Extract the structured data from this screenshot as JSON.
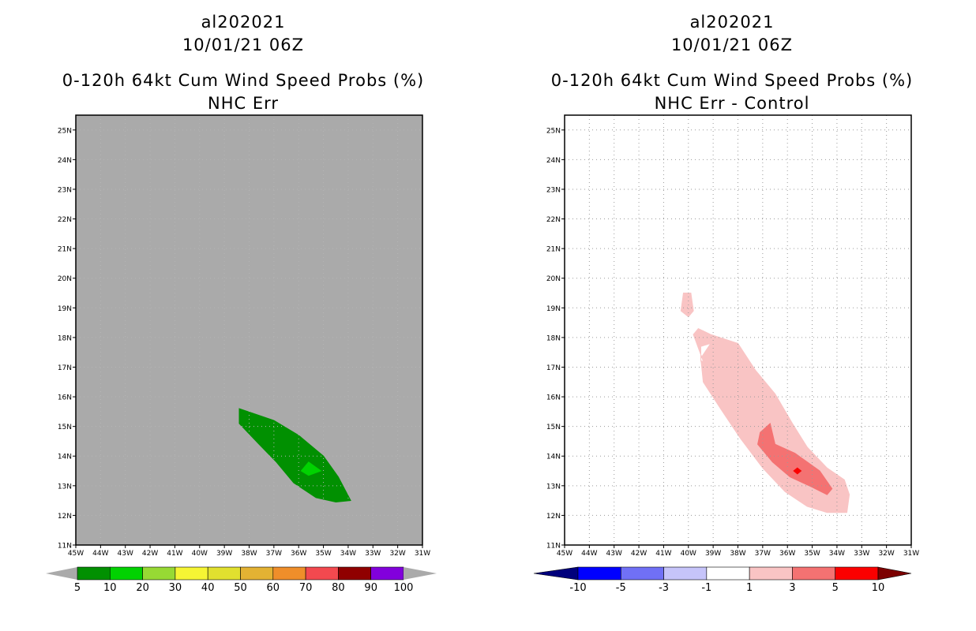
{
  "chart_data": [
    {
      "type": "contour-map",
      "storm_id": "al202021",
      "datetime": "10/01/21 06Z",
      "title": "0-120h 64kt Cum Wind Speed Probs (%)",
      "subtitle": "NHC Err",
      "lat_range": [
        11,
        25.5
      ],
      "lon_range": [
        -45,
        -31
      ],
      "lat_ticks": [
        "11N",
        "12N",
        "13N",
        "14N",
        "15N",
        "16N",
        "17N",
        "18N",
        "19N",
        "20N",
        "21N",
        "22N",
        "23N",
        "24N",
        "25N"
      ],
      "lon_ticks": [
        "45W",
        "44W",
        "43W",
        "42W",
        "41W",
        "40W",
        "39W",
        "38W",
        "37W",
        "36W",
        "35W",
        "34W",
        "33W",
        "32W",
        "31W"
      ],
      "background": "#aaaaaa",
      "regions": [
        {
          "level": "5-10",
          "color": "#019001",
          "lonlat": [
            [
              -38.4,
              15.6
            ],
            [
              -37.0,
              15.2
            ],
            [
              -36.0,
              14.7
            ],
            [
              -35.0,
              14.0
            ],
            [
              -34.4,
              13.3
            ],
            [
              -33.9,
              12.5
            ],
            [
              -34.5,
              12.45
            ],
            [
              -35.3,
              12.6
            ],
            [
              -36.2,
              13.1
            ],
            [
              -36.9,
              13.8
            ],
            [
              -37.6,
              14.4
            ],
            [
              -38.4,
              15.1
            ]
          ]
        },
        {
          "level": "10-20",
          "color": "#01d201",
          "lonlat": [
            [
              -35.6,
              13.8
            ],
            [
              -35.1,
              13.5
            ],
            [
              -35.6,
              13.35
            ],
            [
              -35.9,
              13.5
            ]
          ]
        }
      ],
      "colorbar": {
        "labels": [
          "5",
          "10",
          "20",
          "30",
          "40",
          "50",
          "60",
          "70",
          "80",
          "90",
          "100"
        ],
        "colors": [
          "#019001",
          "#01d201",
          "#97d934",
          "#f6f534",
          "#e1e02f",
          "#e3b233",
          "#ef8e2a",
          "#f3494f",
          "#900000",
          "#8200dc"
        ],
        "end_color": "#aaaaaa"
      }
    },
    {
      "type": "contour-map",
      "storm_id": "al202021",
      "datetime": "10/01/21 06Z",
      "title": "0-120h 64kt Cum Wind Speed Probs (%)",
      "subtitle": "NHC Err - Control",
      "lat_range": [
        11,
        25.5
      ],
      "lon_range": [
        -45,
        -31
      ],
      "lat_ticks": [
        "11N",
        "12N",
        "13N",
        "14N",
        "15N",
        "16N",
        "17N",
        "18N",
        "19N",
        "20N",
        "21N",
        "22N",
        "23N",
        "24N",
        "25N"
      ],
      "lon_ticks": [
        "45W",
        "44W",
        "43W",
        "42W",
        "41W",
        "40W",
        "39W",
        "38W",
        "37W",
        "36W",
        "35W",
        "34W",
        "33W",
        "32W",
        "31W"
      ],
      "background": "#ffffff",
      "grid": true,
      "regions": [
        {
          "level": "1-3",
          "color": "#f9c4c4",
          "lonlat": [
            [
              -39.1,
              18.1
            ],
            [
              -38.0,
              17.8
            ],
            [
              -37.3,
              16.9
            ],
            [
              -36.5,
              16.1
            ],
            [
              -35.8,
              15.1
            ],
            [
              -35.2,
              14.3
            ],
            [
              -34.4,
              13.6
            ],
            [
              -33.7,
              13.2
            ],
            [
              -33.5,
              12.7
            ],
            [
              -33.6,
              12.1
            ],
            [
              -34.4,
              12.1
            ],
            [
              -35.2,
              12.3
            ],
            [
              -36.1,
              12.8
            ],
            [
              -37.0,
              13.6
            ],
            [
              -37.9,
              14.6
            ],
            [
              -38.7,
              15.6
            ],
            [
              -39.4,
              16.5
            ],
            [
              -39.5,
              17.3
            ],
            [
              -39.1,
              17.8
            ],
            [
              -39.5,
              17.7
            ],
            [
              -39.5,
              17.2
            ],
            [
              -38.6,
              17.2
            ],
            [
              -38.1,
              16.1
            ],
            [
              -38.7,
              16.6
            ],
            [
              -39.4,
              17.2
            ],
            [
              -39.8,
              18.1
            ],
            [
              -39.6,
              18.3
            ]
          ]
        },
        {
          "level": "1-3",
          "color": "#f9c4c4",
          "lonlat": [
            [
              -40.2,
              19.5
            ],
            [
              -39.9,
              19.5
            ],
            [
              -39.8,
              18.9
            ],
            [
              -40.0,
              18.7
            ],
            [
              -40.3,
              18.9
            ]
          ]
        },
        {
          "level": "3-5",
          "color": "#f47272",
          "lonlat": [
            [
              -36.7,
              15.1
            ],
            [
              -36.5,
              14.4
            ],
            [
              -35.7,
              14.1
            ],
            [
              -34.7,
              13.5
            ],
            [
              -34.2,
              12.9
            ],
            [
              -34.4,
              12.7
            ],
            [
              -35.0,
              12.95
            ],
            [
              -35.9,
              13.3
            ],
            [
              -36.6,
              13.8
            ],
            [
              -37.2,
              14.4
            ],
            [
              -37.1,
              14.8
            ]
          ]
        },
        {
          "level": "5-10",
          "color": "#fb0000",
          "lonlat": [
            [
              -35.6,
              13.6
            ],
            [
              -35.45,
              13.5
            ],
            [
              -35.6,
              13.4
            ],
            [
              -35.75,
              13.5
            ]
          ]
        }
      ],
      "colorbar": {
        "labels": [
          "-10",
          "-5",
          "-3",
          "-1",
          "1",
          "3",
          "5",
          "10"
        ],
        "colors": [
          "#0000ff",
          "#7070f6",
          "#c6c4fa",
          "#ffffff",
          "#f9c4c4",
          "#f47272",
          "#fb0000"
        ],
        "start_color": "#00007c",
        "end_color": "#7c0000"
      }
    }
  ]
}
